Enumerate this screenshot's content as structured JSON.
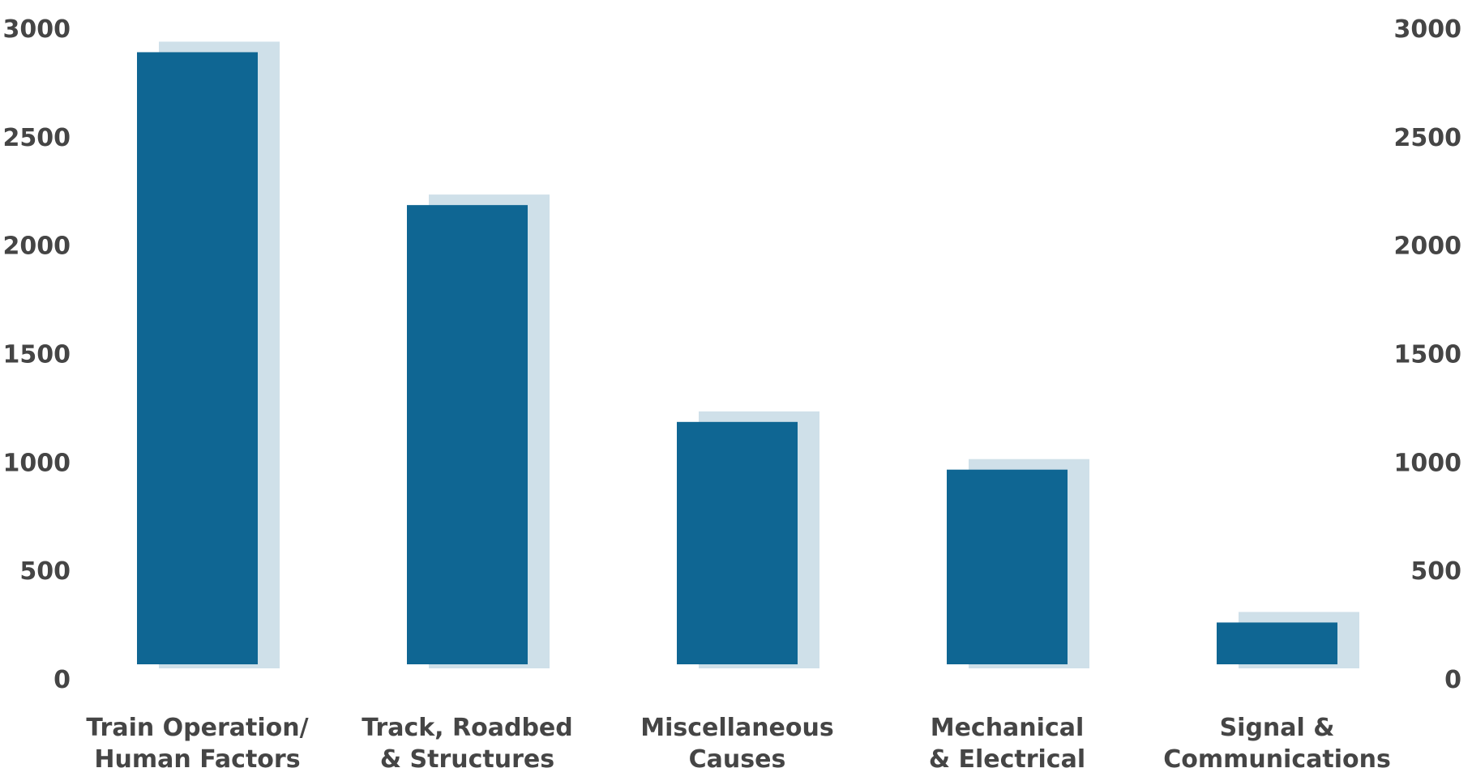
{
  "chart_data": {
    "type": "bar",
    "categories": [
      [
        "Train Operation/",
        "Human Factors"
      ],
      [
        "Track, Roadbed",
        "& Structures"
      ],
      [
        "Miscellaneous",
        "Causes"
      ],
      [
        "Mechanical",
        "& Electrical"
      ],
      [
        "Signal &",
        "Communications"
      ]
    ],
    "values": [
      2890,
      2185,
      1185,
      965,
      260
    ],
    "ylim": [
      0,
      3000
    ],
    "yticks": [
      0,
      500,
      1000,
      1500,
      2000,
      2500,
      3000
    ],
    "ytick_labels": [
      "0",
      "500",
      "1000",
      "1500",
      "2000",
      "2500",
      "3000"
    ],
    "secondary_axis": true,
    "grid": false,
    "colors": {
      "bar": "#0f6693",
      "shadow": "#cfe0e9",
      "text": "#454545"
    }
  }
}
